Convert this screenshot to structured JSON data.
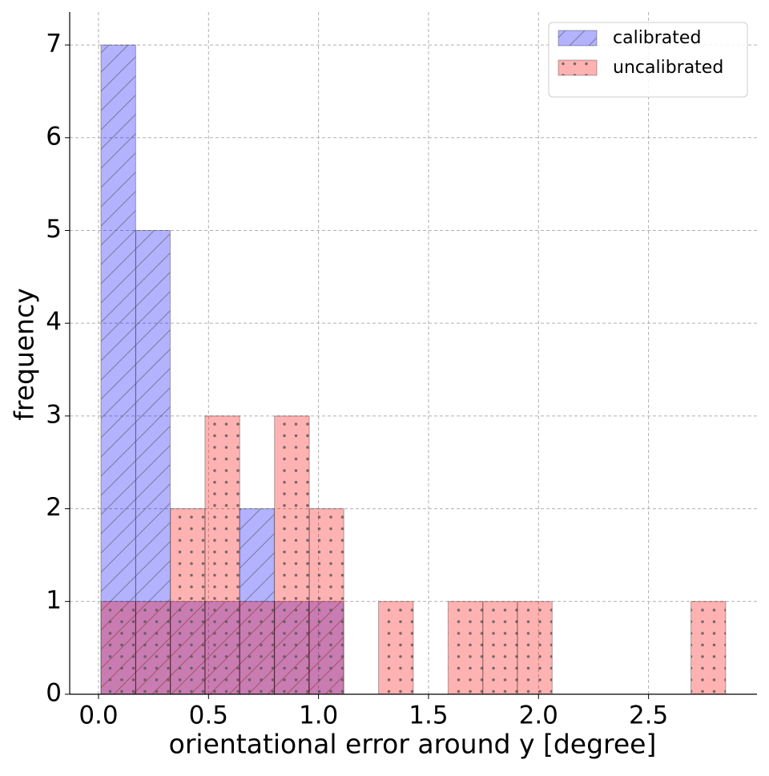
{
  "chart_data": {
    "type": "histogram",
    "x_label": "orientational error around y [degree]",
    "y_label": "frequency",
    "xlim": [
      -0.131,
      2.993
    ],
    "ylim": [
      0,
      7.355
    ],
    "xticks": [
      {
        "value": 0,
        "label": "0.0"
      },
      {
        "value": 0.5,
        "label": "0.5"
      },
      {
        "value": 1,
        "label": "1.0"
      },
      {
        "value": 1.5,
        "label": "1.5"
      },
      {
        "value": 2,
        "label": "2.0"
      },
      {
        "value": 2.5,
        "label": "2.5"
      }
    ],
    "yticks": [
      0,
      1,
      2,
      3,
      4,
      5,
      6,
      7
    ],
    "grid": true,
    "legend": "upper right",
    "series": [
      {
        "name": "calibrated",
        "color": "#0000ff",
        "hatch": "/",
        "bins": [
          0.011,
          0.169,
          0.326,
          0.484,
          0.641,
          0.799,
          0.956,
          1.114
        ],
        "counts": [
          7,
          5,
          1,
          1,
          2,
          1,
          1
        ]
      },
      {
        "name": "uncalibrated",
        "color": "#ff0000",
        "hatch": ".",
        "bins": [
          0.011,
          0.169,
          0.327,
          0.484,
          0.642,
          0.8,
          0.958,
          1.115,
          1.273,
          1.431,
          1.589,
          1.747,
          1.904,
          2.062,
          2.22,
          2.378,
          2.536,
          2.693,
          2.851
        ],
        "counts": [
          1,
          1,
          2,
          3,
          1,
          3,
          2,
          0,
          1,
          0,
          1,
          1,
          1,
          0,
          0,
          0,
          0,
          1
        ]
      }
    ]
  }
}
